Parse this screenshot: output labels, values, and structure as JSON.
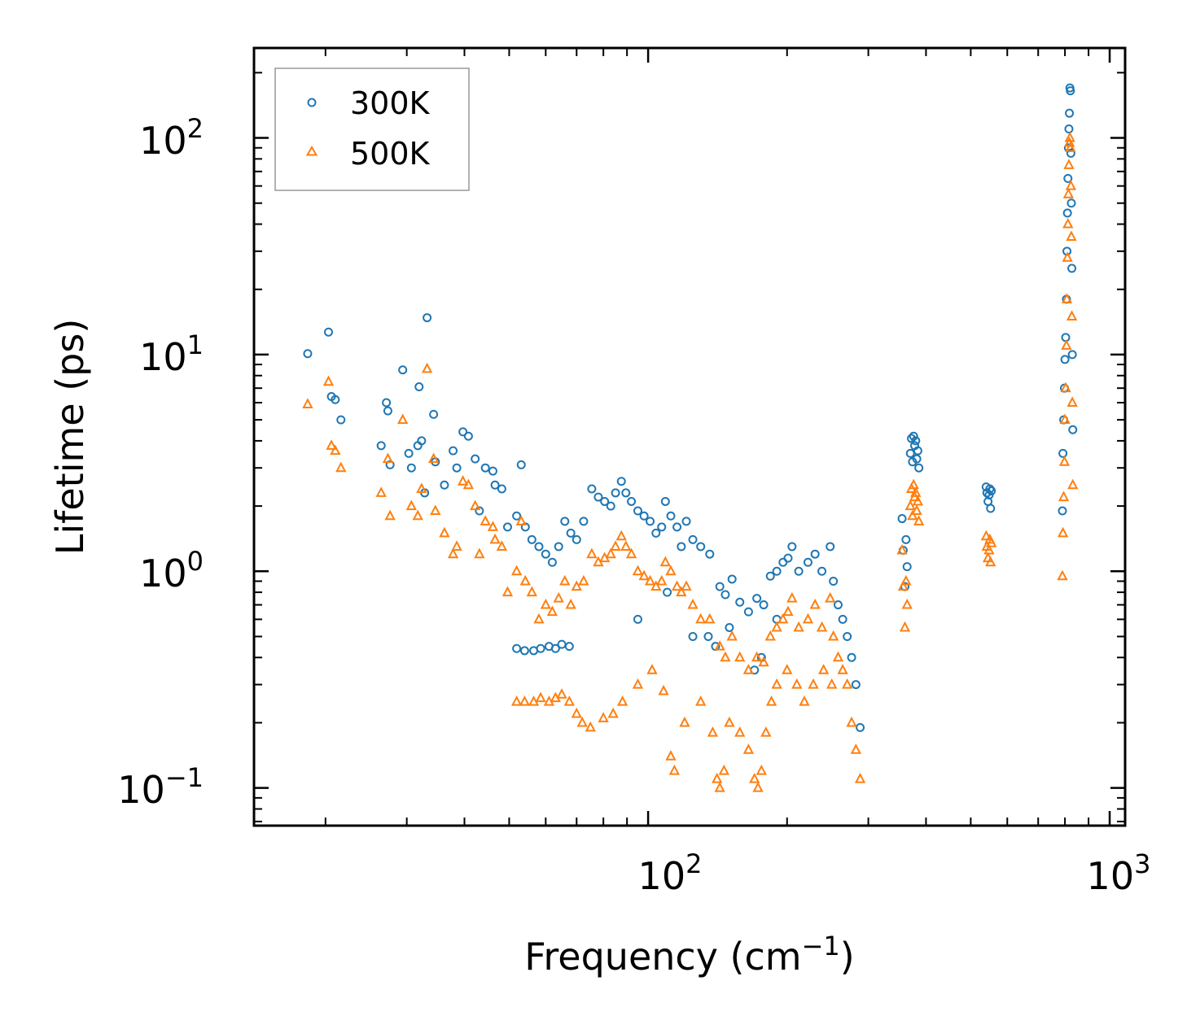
{
  "chart_data": {
    "type": "scatter",
    "xscale": "log",
    "yscale": "log",
    "xlabel": "Frequency (cm",
    "xlabel_sup": "−1",
    "xlabel_end": ")",
    "ylabel": "Lifetime (ps)",
    "xlim": [
      14,
      1080
    ],
    "ylim": [
      0.067,
      260
    ],
    "x_ticks": [
      {
        "base": "10",
        "exp": "2",
        "value": 100
      },
      {
        "base": "10",
        "exp": "3",
        "value": 1000
      }
    ],
    "y_ticks": [
      {
        "base": "10",
        "exp": "−1",
        "value": 0.1
      },
      {
        "base": "10",
        "exp": "0",
        "value": 1
      },
      {
        "base": "10",
        "exp": "1",
        "value": 10
      },
      {
        "base": "10",
        "exp": "2",
        "value": 100
      }
    ],
    "legend": {
      "position": "top-left",
      "entries": [
        "300K",
        "500K"
      ]
    },
    "colors": {
      "300K": "#1f77b4",
      "500K": "#ff7f0e"
    },
    "markers": {
      "300K": "circle",
      "500K": "triangle"
    },
    "series": [
      {
        "name": "300K",
        "sample_points": [
          [
            18.3,
            10.1
          ],
          [
            20.3,
            12.7
          ],
          [
            20.6,
            6.4
          ],
          [
            21.0,
            6.2
          ],
          [
            21.6,
            5.0
          ],
          [
            26.4,
            3.8
          ],
          [
            27.1,
            6.0
          ],
          [
            27.3,
            5.5
          ],
          [
            27.6,
            3.1
          ],
          [
            29.4,
            8.5
          ],
          [
            30.3,
            3.5
          ],
          [
            30.7,
            3.0
          ],
          [
            31.7,
            3.8
          ],
          [
            31.9,
            7.1
          ],
          [
            32.3,
            4.0
          ],
          [
            32.8,
            2.3
          ],
          [
            33.2,
            14.8
          ],
          [
            34.3,
            5.3
          ],
          [
            34.6,
            3.2
          ],
          [
            36.2,
            2.5
          ],
          [
            37.8,
            3.6
          ],
          [
            38.5,
            3.0
          ],
          [
            39.7,
            4.4
          ],
          [
            40.8,
            4.2
          ],
          [
            42.2,
            3.3
          ],
          [
            43.1,
            1.9
          ],
          [
            44.4,
            3.0
          ],
          [
            46.1,
            2.9
          ],
          [
            46.6,
            2.5
          ],
          [
            48.2,
            2.4
          ],
          [
            49.6,
            1.6
          ],
          [
            51.9,
            1.8
          ],
          [
            53.1,
            3.1
          ],
          [
            54.2,
            1.6
          ],
          [
            56.0,
            1.4
          ],
          [
            58.0,
            1.3
          ],
          [
            60.0,
            1.2
          ],
          [
            62.0,
            1.1
          ],
          [
            64.0,
            1.3
          ],
          [
            66.0,
            1.7
          ],
          [
            68.0,
            1.5
          ],
          [
            70.0,
            1.4
          ],
          [
            72.5,
            1.7
          ],
          [
            75.5,
            2.4
          ],
          [
            78.0,
            2.2
          ],
          [
            80.5,
            2.1
          ],
          [
            83.0,
            2.0
          ],
          [
            85.0,
            2.3
          ],
          [
            87.5,
            2.6
          ],
          [
            89.5,
            2.3
          ],
          [
            92.0,
            2.1
          ],
          [
            95.0,
            1.9
          ],
          [
            98.0,
            1.8
          ],
          [
            101.0,
            1.7
          ],
          [
            104.0,
            1.5
          ],
          [
            107.0,
            1.6
          ],
          [
            109.0,
            2.1
          ],
          [
            112.0,
            1.8
          ],
          [
            115.5,
            1.6
          ],
          [
            118.0,
            1.3
          ],
          [
            121.0,
            1.7
          ],
          [
            125.0,
            1.4
          ],
          [
            130.0,
            1.3
          ],
          [
            136.0,
            1.2
          ],
          [
            143.0,
            0.85
          ],
          [
            147.0,
            0.78
          ],
          [
            152.0,
            0.92
          ],
          [
            158.0,
            0.72
          ],
          [
            165.0,
            0.65
          ],
          [
            172.0,
            0.75
          ],
          [
            178.0,
            0.7
          ],
          [
            184.0,
            0.95
          ],
          [
            190.0,
            1.0
          ],
          [
            196.0,
            1.1
          ],
          [
            201.0,
            1.15
          ],
          [
            205.0,
            1.3
          ],
          [
            212.0,
            1.0
          ],
          [
            222.0,
            1.1
          ],
          [
            230.0,
            1.2
          ],
          [
            238.0,
            1.0
          ],
          [
            248.0,
            1.3
          ],
          [
            252.0,
            0.9
          ],
          [
            258.0,
            0.7
          ],
          [
            264.0,
            0.6
          ],
          [
            270.0,
            0.5
          ],
          [
            276.0,
            0.4
          ],
          [
            282.0,
            0.3
          ],
          [
            288.0,
            0.19
          ],
          [
            56.5,
            0.43
          ],
          [
            58.5,
            0.44
          ],
          [
            61.0,
            0.45
          ],
          [
            63.0,
            0.44
          ],
          [
            65.0,
            0.46
          ],
          [
            67.5,
            0.45
          ],
          [
            51.9,
            0.44
          ],
          [
            54.0,
            0.43
          ],
          [
            170.0,
            0.35
          ],
          [
            176.0,
            0.4
          ],
          [
            140.0,
            0.45
          ],
          [
            135.0,
            0.5
          ],
          [
            95.0,
            0.6
          ],
          [
            110.0,
            0.8
          ],
          [
            125.0,
            0.5
          ],
          [
            150.0,
            0.55
          ],
          [
            190.0,
            0.6
          ],
          [
            355.0,
            1.75
          ],
          [
            357.0,
            1.25
          ],
          [
            360.0,
            0.85
          ],
          [
            362.0,
            1.4
          ],
          [
            364.0,
            1.05
          ],
          [
            370.0,
            3.5
          ],
          [
            372.0,
            4.1
          ],
          [
            374.0,
            3.2
          ],
          [
            376.0,
            4.2
          ],
          [
            378.0,
            3.8
          ],
          [
            380.0,
            4.0
          ],
          [
            382.0,
            3.3
          ],
          [
            384.0,
            3.6
          ],
          [
            386.0,
            3.0
          ],
          [
            540.0,
            2.45
          ],
          [
            542.0,
            2.3
          ],
          [
            545.0,
            2.1
          ],
          [
            548.0,
            2.25
          ],
          [
            550.0,
            2.4
          ],
          [
            552.0,
            1.95
          ],
          [
            554.0,
            2.35
          ],
          [
            790.0,
            1.9
          ],
          [
            792.0,
            3.5
          ],
          [
            795.0,
            5.0
          ],
          [
            798.0,
            7.0
          ],
          [
            800.0,
            9.5
          ],
          [
            803.0,
            12.0
          ],
          [
            806.0,
            18.0
          ],
          [
            808.0,
            30.0
          ],
          [
            810.0,
            45.0
          ],
          [
            812.0,
            65.0
          ],
          [
            814.0,
            90.0
          ],
          [
            816.0,
            110.0
          ],
          [
            818.0,
            130.0
          ],
          [
            820.0,
            170.0
          ],
          [
            822.0,
            165.0
          ],
          [
            824.0,
            85.0
          ],
          [
            826.0,
            50.0
          ],
          [
            828.0,
            25.0
          ],
          [
            830.0,
            10.0
          ],
          [
            832.0,
            4.5
          ]
        ]
      },
      {
        "name": "500K",
        "sample_points": [
          [
            18.3,
            5.9
          ],
          [
            20.3,
            7.5
          ],
          [
            20.6,
            3.8
          ],
          [
            21.0,
            3.6
          ],
          [
            21.6,
            3.0
          ],
          [
            26.4,
            2.3
          ],
          [
            27.3,
            3.3
          ],
          [
            27.6,
            1.8
          ],
          [
            29.4,
            5.0
          ],
          [
            30.7,
            2.0
          ],
          [
            31.7,
            1.8
          ],
          [
            32.3,
            2.4
          ],
          [
            33.2,
            8.6
          ],
          [
            34.3,
            3.3
          ],
          [
            34.6,
            1.9
          ],
          [
            36.2,
            1.5
          ],
          [
            37.8,
            1.2
          ],
          [
            38.5,
            1.3
          ],
          [
            39.7,
            2.6
          ],
          [
            40.8,
            2.5
          ],
          [
            42.2,
            2.0
          ],
          [
            43.1,
            1.2
          ],
          [
            44.4,
            1.7
          ],
          [
            46.1,
            1.6
          ],
          [
            46.6,
            1.4
          ],
          [
            48.2,
            1.3
          ],
          [
            49.6,
            0.8
          ],
          [
            51.9,
            1.0
          ],
          [
            53.1,
            1.7
          ],
          [
            54.2,
            0.9
          ],
          [
            56.0,
            0.8
          ],
          [
            58.0,
            0.6
          ],
          [
            60.0,
            0.7
          ],
          [
            62.0,
            0.65
          ],
          [
            64.0,
            0.75
          ],
          [
            66.0,
            0.9
          ],
          [
            68.0,
            0.7
          ],
          [
            70.0,
            0.85
          ],
          [
            72.5,
            0.9
          ],
          [
            75.5,
            1.2
          ],
          [
            78.0,
            1.1
          ],
          [
            80.5,
            1.15
          ],
          [
            83.0,
            1.2
          ],
          [
            85.0,
            1.3
          ],
          [
            87.5,
            1.45
          ],
          [
            89.5,
            1.3
          ],
          [
            92.0,
            1.2
          ],
          [
            95.0,
            1.0
          ],
          [
            98.0,
            0.95
          ],
          [
            101.0,
            0.9
          ],
          [
            104.0,
            0.85
          ],
          [
            107.0,
            0.9
          ],
          [
            109.0,
            1.1
          ],
          [
            112.0,
            1.0
          ],
          [
            115.5,
            0.85
          ],
          [
            118.0,
            0.8
          ],
          [
            121.0,
            0.85
          ],
          [
            125.0,
            0.7
          ],
          [
            130.0,
            0.6
          ],
          [
            136.0,
            0.6
          ],
          [
            143.0,
            0.45
          ],
          [
            147.0,
            0.4
          ],
          [
            152.0,
            0.5
          ],
          [
            158.0,
            0.4
          ],
          [
            165.0,
            0.35
          ],
          [
            172.0,
            0.4
          ],
          [
            178.0,
            0.38
          ],
          [
            184.0,
            0.5
          ],
          [
            190.0,
            0.55
          ],
          [
            196.0,
            0.6
          ],
          [
            201.0,
            0.65
          ],
          [
            205.0,
            0.75
          ],
          [
            212.0,
            0.55
          ],
          [
            222.0,
            0.6
          ],
          [
            230.0,
            0.7
          ],
          [
            238.0,
            0.55
          ],
          [
            248.0,
            0.75
          ],
          [
            252.0,
            0.5
          ],
          [
            258.0,
            0.4
          ],
          [
            264.0,
            0.35
          ],
          [
            270.0,
            0.3
          ],
          [
            276.0,
            0.2
          ],
          [
            282.0,
            0.15
          ],
          [
            288.0,
            0.11
          ],
          [
            51.9,
            0.25
          ],
          [
            54.0,
            0.25
          ],
          [
            56.5,
            0.25
          ],
          [
            58.5,
            0.26
          ],
          [
            61.0,
            0.25
          ],
          [
            63.0,
            0.26
          ],
          [
            65.0,
            0.27
          ],
          [
            67.5,
            0.25
          ],
          [
            70.0,
            0.22
          ],
          [
            72.0,
            0.2
          ],
          [
            75.0,
            0.19
          ],
          [
            80.0,
            0.21
          ],
          [
            84.0,
            0.22
          ],
          [
            88.0,
            0.25
          ],
          [
            95.0,
            0.3
          ],
          [
            102.0,
            0.35
          ],
          [
            108.0,
            0.28
          ],
          [
            112.0,
            0.14
          ],
          [
            114.0,
            0.12
          ],
          [
            120.0,
            0.2
          ],
          [
            130.0,
            0.25
          ],
          [
            138.0,
            0.18
          ],
          [
            141.0,
            0.11
          ],
          [
            143.0,
            0.1
          ],
          [
            146.0,
            0.12
          ],
          [
            150.0,
            0.2
          ],
          [
            158.0,
            0.18
          ],
          [
            165.0,
            0.15
          ],
          [
            170.0,
            0.11
          ],
          [
            173.0,
            0.1
          ],
          [
            176.0,
            0.12
          ],
          [
            180.0,
            0.18
          ],
          [
            185.0,
            0.25
          ],
          [
            190.0,
            0.3
          ],
          [
            200.0,
            0.35
          ],
          [
            210.0,
            0.3
          ],
          [
            218.0,
            0.25
          ],
          [
            228.0,
            0.3
          ],
          [
            240.0,
            0.35
          ],
          [
            250.0,
            0.3
          ],
          [
            355.0,
            1.25
          ],
          [
            357.0,
            0.85
          ],
          [
            360.0,
            0.55
          ],
          [
            362.0,
            0.9
          ],
          [
            364.0,
            0.7
          ],
          [
            370.0,
            2.0
          ],
          [
            372.0,
            2.4
          ],
          [
            374.0,
            1.8
          ],
          [
            376.0,
            2.5
          ],
          [
            378.0,
            2.2
          ],
          [
            380.0,
            2.3
          ],
          [
            382.0,
            1.9
          ],
          [
            384.0,
            2.1
          ],
          [
            386.0,
            1.7
          ],
          [
            540.0,
            1.45
          ],
          [
            542.0,
            1.3
          ],
          [
            545.0,
            1.15
          ],
          [
            548.0,
            1.25
          ],
          [
            550.0,
            1.4
          ],
          [
            552.0,
            1.1
          ],
          [
            554.0,
            1.35
          ],
          [
            790.0,
            0.95
          ],
          [
            792.0,
            1.5
          ],
          [
            795.0,
            2.2
          ],
          [
            798.0,
            3.2
          ],
          [
            800.0,
            5.0
          ],
          [
            803.0,
            7.0
          ],
          [
            806.0,
            11.0
          ],
          [
            808.0,
            18.0
          ],
          [
            810.0,
            28.0
          ],
          [
            812.0,
            40.0
          ],
          [
            814.0,
            55.0
          ],
          [
            816.0,
            75.0
          ],
          [
            818.0,
            95.0
          ],
          [
            820.0,
            100.0
          ],
          [
            822.0,
            90.0
          ],
          [
            824.0,
            60.0
          ],
          [
            826.0,
            35.0
          ],
          [
            828.0,
            15.0
          ],
          [
            830.0,
            6.0
          ],
          [
            832.0,
            2.5
          ]
        ]
      }
    ]
  }
}
